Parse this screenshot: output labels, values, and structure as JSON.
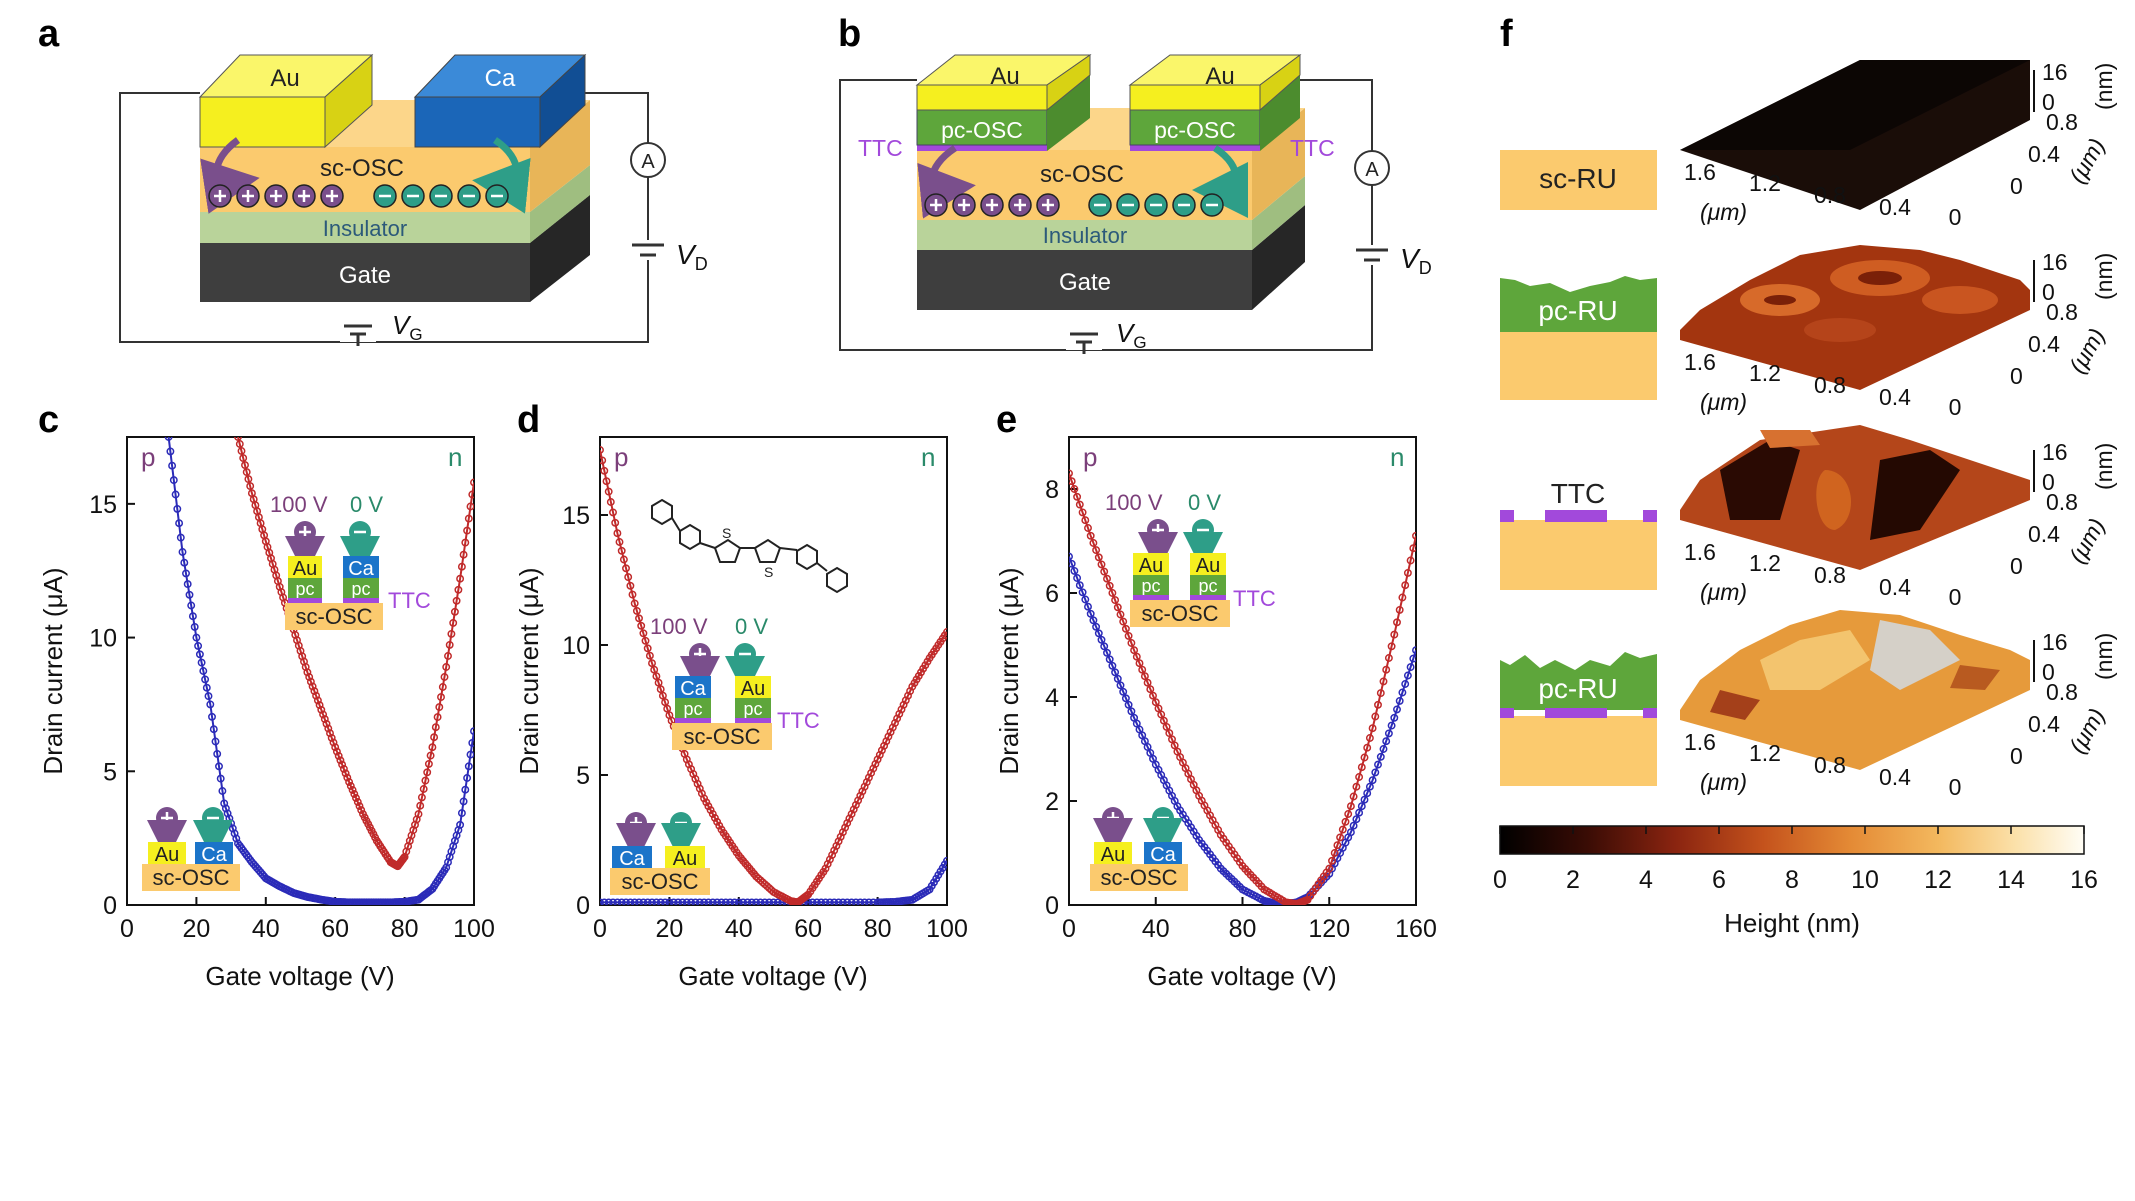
{
  "panel_labels": [
    "a",
    "b",
    "c",
    "d",
    "e",
    "f"
  ],
  "colors": {
    "au": "#f5ef1f",
    "ca": "#1b74c9",
    "sc_osc": "#fbca6e",
    "pc_osc": "#5ea63b",
    "ttc": "#a249db",
    "insulator": "#b9d39a",
    "gate": "#3e3e3e",
    "hole": "#7a4f8c",
    "electron": "#2e9e88",
    "p_series": "#2b2bb8",
    "n_series": "#c02a2a"
  },
  "diagram_a": {
    "left_electrode": "Au",
    "right_electrode": "Ca",
    "semiconductor": "sc-OSC",
    "insulator": "Insulator",
    "gate": "Gate",
    "ammeter": "A",
    "vd_main": "V",
    "vd_sub": "D",
    "vg_main": "V",
    "vg_sub": "G"
  },
  "diagram_b": {
    "left_electrode": "Au",
    "right_electrode": "Au",
    "pc_left": "pc-OSC",
    "pc_right": "pc-OSC",
    "ttc_left": "TTC",
    "ttc_right": "TTC",
    "semiconductor": "sc-OSC",
    "insulator": "Insulator",
    "gate": "Gate",
    "ammeter": "A",
    "vd_main": "V",
    "vd_sub": "D",
    "vg_main": "V",
    "vg_sub": "G"
  },
  "panel_c": {
    "corner_p": "p",
    "corner_n": "n",
    "inset_top": {
      "v_left": "100 V",
      "v_right": "0 V",
      "el_left": "Au",
      "el_right": "Ca",
      "pc": "pc",
      "ttc": "TTC",
      "osc": "sc-OSC"
    },
    "inset_bottom": {
      "el_left": "Au",
      "el_right": "Ca",
      "osc": "sc-OSC"
    }
  },
  "panel_d": {
    "corner_p": "p",
    "corner_n": "n",
    "molecule_s": "S",
    "inset_top": {
      "v_left": "100 V",
      "v_right": "0 V",
      "el_left": "Ca",
      "el_right": "Au",
      "pc": "pc",
      "ttc": "TTC",
      "osc": "sc-OSC"
    },
    "inset_bottom": {
      "el_left": "Ca",
      "el_right": "Au",
      "osc": "sc-OSC"
    }
  },
  "panel_e": {
    "corner_p": "p",
    "corner_n": "n",
    "inset_top": {
      "v_left": "100 V",
      "v_right": "0 V",
      "el_left": "Au",
      "el_right": "Au",
      "pc": "pc",
      "ttc": "TTC",
      "osc": "sc-OSC"
    },
    "inset_bottom": {
      "el_left": "Au",
      "el_right": "Ca",
      "osc": "sc-OSC"
    }
  },
  "panel_f": {
    "rows": [
      {
        "label": "sc-RU",
        "ticks_x": [
          "1.6",
          "1.2",
          "0.8",
          "0.4",
          "0"
        ],
        "ticks_y": [
          "0.8",
          "0.4",
          "0"
        ],
        "ticks_z": [
          "16",
          "0"
        ],
        "unit_x": "(μm)",
        "unit_y": "(μm)",
        "unit_z": "(nm)"
      },
      {
        "label": "pc-RU",
        "ticks_x": [
          "1.6",
          "1.2",
          "0.8",
          "0.4",
          "0"
        ],
        "ticks_y": [
          "0.8",
          "0.4",
          "0"
        ],
        "ticks_z": [
          "16",
          "0"
        ],
        "unit_x": "(μm)",
        "unit_y": "(μm)",
        "unit_z": "(nm)"
      },
      {
        "label": "TTC",
        "ticks_x": [
          "1.6",
          "1.2",
          "0.8",
          "0.4",
          "0"
        ],
        "ticks_y": [
          "0.8",
          "0.4",
          "0"
        ],
        "ticks_z": [
          "16",
          "0"
        ],
        "unit_x": "(μm)",
        "unit_y": "(μm)",
        "unit_z": "(nm)"
      },
      {
        "label": "pc-RU",
        "ticks_x": [
          "1.6",
          "1.2",
          "0.8",
          "0.4",
          "0"
        ],
        "ticks_y": [
          "0.8",
          "0.4",
          "0"
        ],
        "ticks_z": [
          "16",
          "0"
        ],
        "unit_x": "(μm)",
        "unit_y": "(μm)",
        "unit_z": "(nm)"
      }
    ],
    "colorbar": {
      "ticks": [
        "0",
        "2",
        "4",
        "6",
        "8",
        "10",
        "12",
        "14",
        "16"
      ],
      "label": "Height (nm)"
    }
  },
  "chart_data": [
    {
      "type": "line",
      "panel": "c",
      "xlabel": "Gate voltage (V)",
      "ylabel": "Drain current (μA)",
      "xlim": [
        0,
        100
      ],
      "ylim": [
        0,
        17.5
      ],
      "xticks": [
        0,
        20,
        40,
        60,
        80,
        100
      ],
      "yticks": [
        0,
        5,
        10,
        15
      ],
      "series": [
        {
          "color": "#2b2bb8",
          "x": [
            12,
            16,
            20,
            24,
            28,
            32,
            36,
            40,
            44,
            48,
            52,
            56,
            60,
            64,
            68,
            72,
            76,
            80,
            84,
            88,
            92,
            96,
            100
          ],
          "y": [
            17.5,
            13.2,
            10.0,
            7.5,
            3.8,
            2.3,
            1.6,
            1.0,
            0.7,
            0.45,
            0.3,
            0.2,
            0.12,
            0.1,
            0.1,
            0.1,
            0.1,
            0.12,
            0.2,
            0.6,
            1.4,
            3.0,
            6.5
          ]
        },
        {
          "color": "#c02a2a",
          "x": [
            32,
            36,
            40,
            44,
            48,
            52,
            56,
            60,
            64,
            68,
            72,
            76,
            78,
            80,
            84,
            88,
            92,
            96,
            100
          ],
          "y": [
            17.5,
            15.4,
            13.6,
            11.9,
            10.3,
            8.7,
            7.3,
            5.9,
            4.6,
            3.4,
            2.4,
            1.6,
            1.45,
            1.8,
            3.4,
            5.9,
            8.9,
            12.2,
            15.8
          ]
        }
      ]
    },
    {
      "type": "line",
      "panel": "d",
      "xlabel": "Gate voltage (V)",
      "ylabel": "Drain current (μA)",
      "xlim": [
        0,
        100
      ],
      "ylim": [
        0,
        18
      ],
      "xticks": [
        0,
        20,
        40,
        60,
        80,
        100
      ],
      "yticks": [
        0,
        5,
        10,
        15
      ],
      "series": [
        {
          "color": "#2b2bb8",
          "x": [
            0,
            10,
            20,
            30,
            40,
            50,
            60,
            70,
            80,
            85,
            90,
            95,
            100
          ],
          "y": [
            0.1,
            0.1,
            0.1,
            0.1,
            0.1,
            0.1,
            0.1,
            0.1,
            0.1,
            0.12,
            0.2,
            0.6,
            1.7
          ]
        },
        {
          "color": "#c02a2a",
          "x": [
            0,
            5,
            10,
            15,
            20,
            25,
            30,
            35,
            40,
            45,
            50,
            55,
            57,
            60,
            65,
            70,
            75,
            80,
            85,
            90,
            95,
            100
          ],
          "y": [
            17.5,
            14.3,
            11.6,
            9.3,
            7.3,
            5.6,
            4.1,
            2.9,
            1.9,
            1.1,
            0.5,
            0.15,
            0.1,
            0.4,
            1.4,
            2.8,
            4.2,
            5.6,
            7.0,
            8.4,
            9.5,
            10.5
          ]
        }
      ]
    },
    {
      "type": "line",
      "panel": "e",
      "xlabel": "Gate voltage (V)",
      "ylabel": "Drain current (μA)",
      "xlim": [
        0,
        160
      ],
      "ylim": [
        0,
        9
      ],
      "xticks": [
        0,
        40,
        80,
        120,
        160
      ],
      "yticks": [
        0,
        2,
        4,
        6,
        8
      ],
      "series": [
        {
          "color": "#2b2bb8",
          "x": [
            0,
            10,
            20,
            30,
            40,
            50,
            60,
            70,
            80,
            90,
            95,
            100,
            105,
            110,
            120,
            130,
            140,
            150,
            160
          ],
          "y": [
            6.7,
            5.6,
            4.6,
            3.6,
            2.7,
            1.9,
            1.25,
            0.7,
            0.3,
            0.08,
            0.03,
            0.02,
            0.05,
            0.15,
            0.6,
            1.4,
            2.4,
            3.6,
            4.9
          ]
        },
        {
          "color": "#c02a2a",
          "x": [
            0,
            10,
            20,
            30,
            40,
            50,
            60,
            70,
            80,
            90,
            100,
            105,
            110,
            120,
            130,
            140,
            150,
            160
          ],
          "y": [
            8.3,
            7.1,
            6.0,
            4.9,
            3.9,
            2.95,
            2.1,
            1.35,
            0.75,
            0.3,
            0.05,
            0.02,
            0.1,
            0.7,
            1.9,
            3.4,
            5.2,
            7.1
          ]
        }
      ]
    }
  ]
}
